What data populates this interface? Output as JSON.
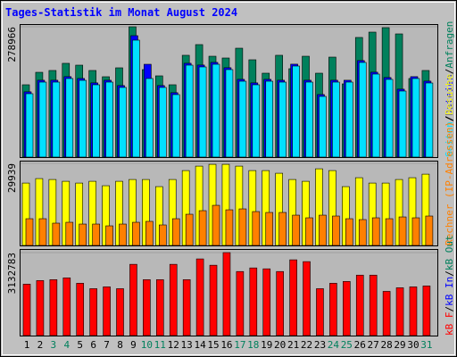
{
  "chart_data": [
    {
      "type": "bar",
      "title": "Tages-Statistik im Monat August 2024",
      "ylim": [
        0,
        278966
      ],
      "yticks": [
        278966
      ],
      "legend_separator": "/",
      "legend_reverse": true,
      "series": [
        {
          "name": "Anfragen",
          "color": "#00805c",
          "values": [
            154800,
            181500,
            185400,
            200700,
            196800,
            185400,
            172000,
            191100,
            278966,
            187300,
            173900,
            154800,
            217900,
            240800,
            215900,
            212100,
            233100,
            208300,
            179600,
            217900,
            189200,
            215900,
            179600,
            214000,
            156700,
            256100,
            267500,
            277100,
            263700,
            168200,
            185400
          ]
        },
        {
          "name": "Dateien",
          "color": "#0000ff",
          "values": [
            139700,
            164500,
            164500,
            172200,
            168300,
            158800,
            164500,
            153100,
            259900,
            198700,
            153100,
            137800,
            200800,
            197000,
            202700,
            191300,
            166400,
            158800,
            166400,
            164500,
            198900,
            164500,
            133900,
            164500,
            164500,
            206600,
            181700,
            170300,
            145400,
            172200,
            162600
          ]
        },
        {
          "name": "Seiten",
          "color": "#00e0ff",
          "values": [
            135700,
            160500,
            160500,
            168200,
            164300,
            154800,
            160500,
            149100,
            250300,
            168200,
            149100,
            133800,
            196800,
            193000,
            198700,
            187300,
            162400,
            154800,
            162400,
            160500,
            194900,
            160500,
            129900,
            160500,
            160500,
            202600,
            177700,
            166300,
            141400,
            168200,
            158600
          ]
        }
      ]
    },
    {
      "type": "bar",
      "ylim": [
        0,
        29939
      ],
      "yticks": [
        29939
      ],
      "legend_separator": "/",
      "legend_reverse": true,
      "series": [
        {
          "name": "Besuche",
          "color": "#ffff00",
          "values": [
            22750,
            24380,
            24050,
            23400,
            22750,
            23400,
            21780,
            23400,
            24050,
            24050,
            21450,
            24050,
            27300,
            28930,
            29580,
            29580,
            28930,
            27300,
            27300,
            26330,
            24050,
            23400,
            27950,
            27300,
            21450,
            24700,
            22750,
            22750,
            24050,
            24700,
            26000
          ]
        },
        {
          "name": "Rechner (IP-Adressen)",
          "color": "#ff8000",
          "values": [
            9750,
            9750,
            8130,
            8450,
            7800,
            7800,
            7150,
            7800,
            8450,
            8780,
            7480,
            9750,
            11380,
            12680,
            14630,
            13000,
            13330,
            12350,
            12030,
            12030,
            11050,
            10080,
            11050,
            10730,
            9750,
            9430,
            10080,
            9750,
            10400,
            10080,
            10730
          ]
        }
      ]
    },
    {
      "type": "bar",
      "ylim": [
        0,
        3132783
      ],
      "yticks": [
        3132783
      ],
      "legend_separator": "/",
      "legend_reverse": false,
      "categories": [
        "1",
        "2",
        "3",
        "4",
        "5",
        "6",
        "7",
        "8",
        "9",
        "10",
        "11",
        "12",
        "13",
        "14",
        "15",
        "16",
        "17",
        "18",
        "19",
        "20",
        "21",
        "22",
        "23",
        "24",
        "25",
        "26",
        "27",
        "28",
        "29",
        "30",
        "31"
      ],
      "category_colors": [
        "#000000",
        "#000000",
        "#00805c",
        "#00805c",
        "#000000",
        "#000000",
        "#000000",
        "#000000",
        "#000000",
        "#00805c",
        "#00805c",
        "#000000",
        "#000000",
        "#000000",
        "#000000",
        "#000000",
        "#00805c",
        "#00805c",
        "#000000",
        "#000000",
        "#000000",
        "#000000",
        "#000000",
        "#00805c",
        "#00805c",
        "#000000",
        "#000000",
        "#000000",
        "#000000",
        "#000000",
        "#00805c"
      ],
      "series": [
        {
          "name": "kB F",
          "color": "#ff0000",
          "values": [
            1941000,
            2077000,
            2111000,
            2179000,
            1975000,
            1771000,
            1839000,
            1771000,
            2690000,
            2111000,
            2111000,
            2690000,
            2111000,
            2894000,
            2656000,
            3132783,
            2418000,
            2554000,
            2520000,
            2418000,
            2860000,
            2792000,
            1771000,
            1975000,
            2043000,
            2282000,
            2282000,
            1669000,
            1805000,
            1839000,
            1873000
          ]
        },
        {
          "name": "kB In",
          "color": "#0000ff"
        },
        {
          "name": "kB Out",
          "color": "#00805c"
        }
      ]
    }
  ]
}
